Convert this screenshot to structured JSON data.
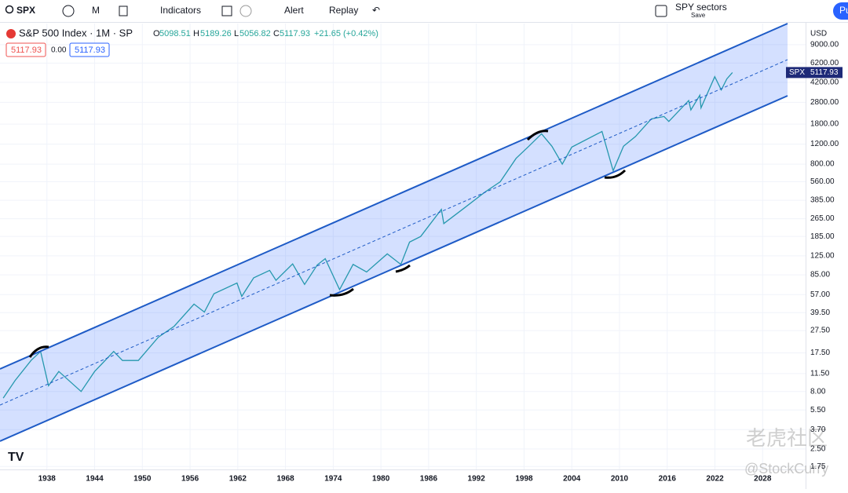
{
  "toolbar": {
    "symbol": "SPX",
    "interval": "M",
    "indicators": "Indicators",
    "alert": "Alert",
    "replay": "Replay",
    "layout_name": "SPY sectors",
    "save": "Save",
    "publish": "Pu"
  },
  "legend": {
    "title": "S&P 500 Index · 1M · SP",
    "open_label": "O",
    "open": 5098.51,
    "high_label": "H",
    "high": 5189.26,
    "low_label": "L",
    "low": 5056.82,
    "close_label": "C",
    "close": 5117.93,
    "change": "+21.65 (+0.42%)",
    "bid": 5117.93,
    "spread": "0.00",
    "ask": 5117.93
  },
  "watermark": {
    "brand": "老虎社区",
    "author": "@StockCurry"
  },
  "chart_data": {
    "type": "line",
    "log_scale": true,
    "currency": "USD",
    "price_tag_symbol": "SPX",
    "price_tag": 5117.93,
    "color": "#26a69a",
    "x": [
      1932.5,
      1934,
      1936,
      1937.2,
      1938.2,
      1939.5,
      1942.3,
      1944,
      1946.4,
      1947.5,
      1949.5,
      1952,
      1954,
      1956.5,
      1957.8,
      1959,
      1961.9,
      1962.5,
      1964,
      1966,
      1966.8,
      1968.9,
      1970.4,
      1972,
      1973,
      1974.8,
      1976.5,
      1978.2,
      1980.8,
      1982.5,
      1983.6,
      1985,
      1987.6,
      1987.9,
      1990.5,
      1993,
      1995,
      1997,
      1998.6,
      2000.2,
      2001.5,
      2002.8,
      2004,
      2007.8,
      2009.2,
      2010.5,
      2012,
      2014,
      2015.6,
      2016.2,
      2018.7,
      2018.98,
      2020.1,
      2020.25,
      2021.98,
      2022.8,
      2023.5,
      2024.2
    ],
    "values": [
      7,
      10,
      15,
      18,
      9,
      12,
      8,
      12,
      18,
      15,
      15,
      24,
      30,
      47,
      40,
      58,
      72,
      55,
      80,
      93,
      76,
      106,
      70,
      104,
      118,
      63,
      105,
      90,
      130,
      105,
      165,
      185,
      320,
      240,
      330,
      450,
      560,
      900,
      1150,
      1480,
      1150,
      800,
      1130,
      1550,
      700,
      1150,
      1400,
      2000,
      2100,
      1900,
      2900,
      2400,
      3230,
      2500,
      4700,
      3600,
      4500,
      5118
    ],
    "xlim": [
      1932.1,
      2033.4
    ],
    "ylim": [
      1.65,
      13800
    ],
    "xticks": [
      1938,
      1944,
      1950,
      1956,
      1962,
      1968,
      1974,
      1980,
      1986,
      1992,
      1998,
      2004,
      2010,
      2016,
      2022,
      2028
    ],
    "yticks": [
      {
        "value": 9000,
        "label": "9000.00"
      },
      {
        "value": 6200,
        "label": "6200.00"
      },
      {
        "value": 4200,
        "label": "4200.00"
      },
      {
        "value": 2800,
        "label": "2800.00"
      },
      {
        "value": 1800,
        "label": "1800.00"
      },
      {
        "value": 1200,
        "label": "1200.00"
      },
      {
        "value": 800,
        "label": "800.00"
      },
      {
        "value": 560,
        "label": "560.00"
      },
      {
        "value": 385,
        "label": "385.00"
      },
      {
        "value": 265,
        "label": "265.00"
      },
      {
        "value": 185,
        "label": "185.00"
      },
      {
        "value": 125,
        "label": "125.00"
      },
      {
        "value": 85,
        "label": "85.00"
      },
      {
        "value": 57,
        "label": "57.00"
      },
      {
        "value": 39.5,
        "label": "39.50"
      },
      {
        "value": 27.5,
        "label": "27.50"
      },
      {
        "value": 17.5,
        "label": "17.50"
      },
      {
        "value": 11.5,
        "label": "11.50"
      },
      {
        "value": 8,
        "label": "8.00"
      },
      {
        "value": 5.5,
        "label": "5.50"
      },
      {
        "value": 3.7,
        "label": "3.70"
      },
      {
        "value": 2.5,
        "label": "2.50"
      },
      {
        "value": 1.75,
        "label": "1.75"
      }
    ],
    "grid": true
  }
}
